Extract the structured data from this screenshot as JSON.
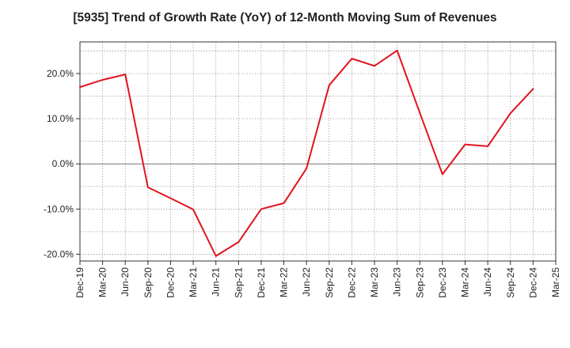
{
  "chart_data": {
    "type": "line",
    "title": "[5935]  Trend of Growth Rate (YoY) of 12-Month Moving Sum of Revenues",
    "xlabel": "",
    "ylabel": "",
    "ylim": [
      -21.5,
      27.0
    ],
    "y_ticks": [
      {
        "value": -20,
        "label": "-20.0%"
      },
      {
        "value": -10,
        "label": "-10.0%"
      },
      {
        "value": 0,
        "label": "0.0%"
      },
      {
        "value": 10,
        "label": "10.0%"
      },
      {
        "value": 20,
        "label": "20.0%"
      }
    ],
    "x_ticks": [
      "Dec-19",
      "Mar-20",
      "Jun-20",
      "Sep-20",
      "Dec-20",
      "Mar-21",
      "Jun-21",
      "Sep-21",
      "Dec-21",
      "Mar-22",
      "Jun-22",
      "Sep-22",
      "Dec-22",
      "Mar-23",
      "Jun-23",
      "Sep-23",
      "Dec-23",
      "Mar-24",
      "Jun-24",
      "Sep-24",
      "Dec-24",
      "Mar-25"
    ],
    "grid": true,
    "line_color": "#e0141e",
    "zero_line_color": "#777777",
    "series": [
      {
        "x": [
          "Dec-19",
          "Mar-20",
          "Jun-20",
          "Sep-20",
          "Dec-20",
          "Mar-21",
          "Jun-21",
          "Sep-21",
          "Dec-21",
          "Mar-22",
          "Jun-22",
          "Sep-22",
          "Dec-22",
          "Mar-23",
          "Jun-23",
          "Sep-23",
          "Dec-23",
          "Mar-24",
          "Jun-24",
          "Sep-24",
          "Dec-24"
        ],
        "values": [
          17.0,
          18.6,
          19.8,
          -5.2,
          -7.6,
          -10.1,
          -20.4,
          -17.3,
          -10.0,
          -8.7,
          -1.0,
          17.4,
          23.3,
          21.7,
          25.1,
          11.3,
          -2.3,
          4.3,
          3.9,
          11.2,
          16.6
        ]
      }
    ]
  }
}
